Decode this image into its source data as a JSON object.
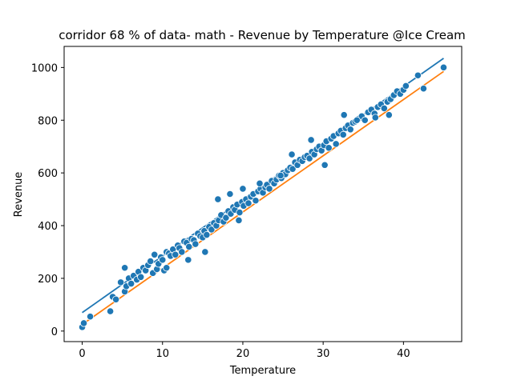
{
  "chart_data": {
    "type": "scatter",
    "title": "corridor 68 % of data- math - Revenue by Temperature @Ice Cream",
    "xlabel": "Temperature",
    "ylabel": "Revenue",
    "xlim": [
      -2.25,
      47.25
    ],
    "ylim": [
      -40,
      1080
    ],
    "xticks": [
      0,
      10,
      20,
      30,
      40
    ],
    "yticks": [
      0,
      200,
      400,
      600,
      800,
      1000
    ],
    "grid": false,
    "legend": "none",
    "point_color": "#1f77b4",
    "series": [
      {
        "type": "scatter",
        "color": "#1f77b4",
        "x": [
          0,
          0.2,
          1,
          3.5,
          3.8,
          4.2,
          4.8,
          5.3,
          5.5,
          5.8,
          6.1,
          6.4,
          6.8,
          7.0,
          7.3,
          7.6,
          7.9,
          8.2,
          8.5,
          8.8,
          9.0,
          9.3,
          9.5,
          9.8,
          10.0,
          10.2,
          10.5,
          10.8,
          11.0,
          11.3,
          11.6,
          11.9,
          12.1,
          12.4,
          12.7,
          13.0,
          13.3,
          13.6,
          13.9,
          14.1,
          14.4,
          14.7,
          15.0,
          15.2,
          15.5,
          15.8,
          16.1,
          16.4,
          16.7,
          17.0,
          17.3,
          17.6,
          17.9,
          18.2,
          18.5,
          18.8,
          19.0,
          19.3,
          19.6,
          19.9,
          20.1,
          20.4,
          20.7,
          21.0,
          21.3,
          21.6,
          21.9,
          22.2,
          22.5,
          22.8,
          23.0,
          23.3,
          23.6,
          23.9,
          24.2,
          24.5,
          24.8,
          25.0,
          25.3,
          25.6,
          25.9,
          26.2,
          26.5,
          26.8,
          27.1,
          27.4,
          27.7,
          28.0,
          28.3,
          28.6,
          28.9,
          29.2,
          29.5,
          29.8,
          30.1,
          30.4,
          30.7,
          31.0,
          31.3,
          31.6,
          31.9,
          32.2,
          32.5,
          32.8,
          33.1,
          33.4,
          33.7,
          34.0,
          34.4,
          34.8,
          35.2,
          35.6,
          36.0,
          36.4,
          36.8,
          37.2,
          37.6,
          38.0,
          38.4,
          38.8,
          39.2,
          39.6,
          40.0,
          40.3,
          41.8,
          42.5,
          45.0,
          5.3,
          16.9,
          20.0,
          26.1,
          32.6,
          28.5,
          38.2,
          13.2,
          18.4,
          22.1,
          24.7,
          30.2,
          10.5,
          36.5,
          34.2,
          19.5,
          15.3
        ],
        "y": [
          15,
          30,
          55,
          75,
          130,
          120,
          185,
          150,
          170,
          200,
          180,
          210,
          195,
          225,
          205,
          240,
          230,
          250,
          265,
          220,
          290,
          235,
          255,
          280,
          270,
          230,
          300,
          295,
          285,
          310,
          290,
          325,
          315,
          300,
          340,
          335,
          320,
          350,
          345,
          330,
          370,
          360,
          355,
          380,
          365,
          395,
          385,
          410,
          400,
          420,
          440,
          415,
          430,
          455,
          445,
          470,
          460,
          480,
          450,
          490,
          475,
          500,
          485,
          510,
          520,
          495,
          530,
          540,
          525,
          545,
          555,
          540,
          570,
          560,
          575,
          590,
          580,
          600,
          595,
          610,
          620,
          615,
          640,
          630,
          650,
          645,
          660,
          665,
          655,
          680,
          670,
          690,
          700,
          685,
          705,
          720,
          695,
          730,
          740,
          710,
          750,
          760,
          745,
          770,
          780,
          765,
          790,
          795,
          805,
          815,
          800,
          830,
          840,
          825,
          850,
          860,
          845,
          870,
          880,
          895,
          910,
          900,
          915,
          930,
          970,
          920,
          1000,
          240,
          500,
          540,
          670,
          820,
          725,
          820,
          270,
          520,
          560,
          590,
          630,
          240,
          810,
          800,
          420,
          300
        ]
      },
      {
        "type": "line",
        "color": "#1f77b4",
        "x": [
          0,
          45
        ],
        "y": [
          70,
          1035
        ]
      },
      {
        "type": "line",
        "color": "#ff7f0e",
        "x": [
          0,
          45
        ],
        "y": [
          25,
          985
        ]
      }
    ]
  }
}
